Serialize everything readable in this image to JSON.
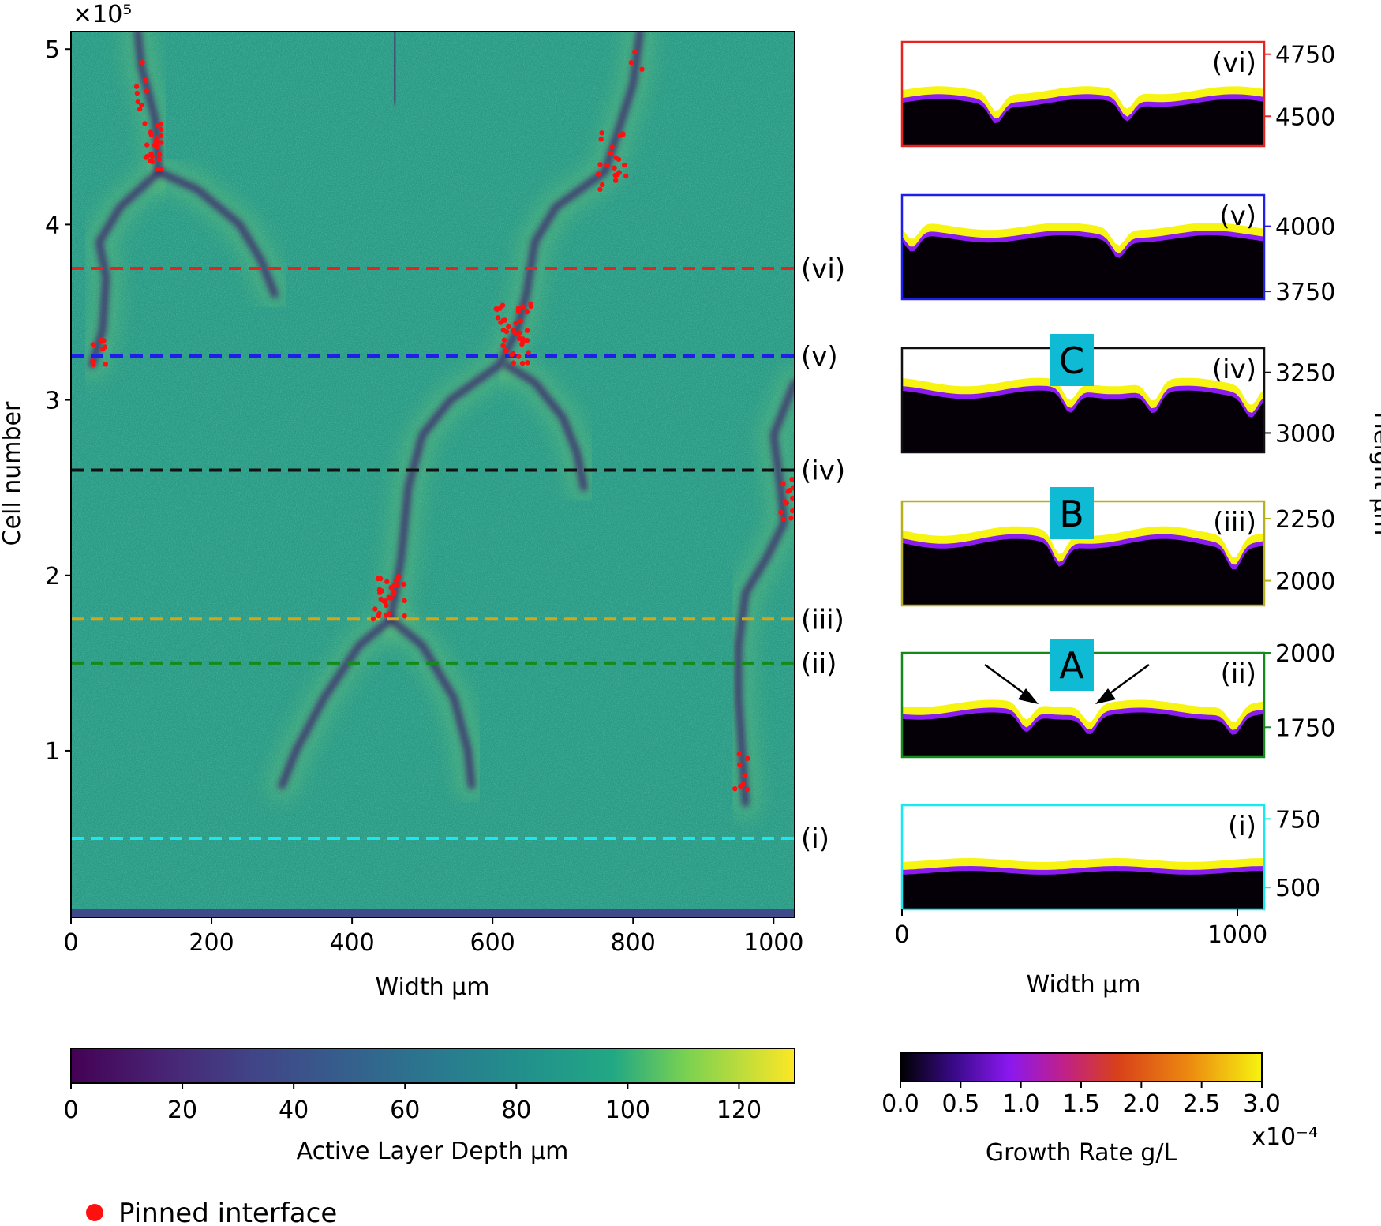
{
  "chart_data": [
    {
      "type": "heatmap",
      "name": "main-heatmap",
      "exponent_label": "×10⁵",
      "xlabel": "Width μm",
      "ylabel": "Cell number",
      "xlim": [
        0,
        1030
      ],
      "ylim": [
        0.05,
        5.1
      ],
      "xticks": [
        0,
        200,
        400,
        600,
        800,
        1000
      ],
      "yticks": [
        1,
        2,
        3,
        4,
        5
      ],
      "background_color": "#2a9a84",
      "channel_color": "#3f2a6e",
      "channels": [
        {
          "points": [
            [
              300,
              0.8
            ],
            [
              320,
              1.0
            ],
            [
              360,
              1.3
            ],
            [
              410,
              1.6
            ],
            [
              455,
              1.75
            ],
            [
              470,
              2.1
            ],
            [
              480,
              2.5
            ],
            [
              500,
              2.8
            ],
            [
              540,
              3.0
            ],
            [
              610,
              3.2
            ],
            [
              635,
              3.4
            ],
            [
              648,
              3.6
            ],
            [
              660,
              3.9
            ],
            [
              690,
              4.1
            ],
            [
              760,
              4.3
            ],
            [
              800,
              4.8
            ],
            [
              810,
              5.1
            ]
          ]
        },
        {
          "points": [
            [
              455,
              1.75
            ],
            [
              500,
              1.6
            ],
            [
              545,
              1.3
            ],
            [
              565,
              1.0
            ],
            [
              570,
              0.8
            ]
          ]
        },
        {
          "points": [
            [
              620,
              3.2
            ],
            [
              660,
              3.1
            ],
            [
              700,
              2.9
            ],
            [
              720,
              2.7
            ],
            [
              730,
              2.5
            ]
          ]
        },
        {
          "points": [
            [
              30,
              3.2
            ],
            [
              45,
              3.4
            ],
            [
              50,
              3.7
            ],
            [
              40,
              3.9
            ],
            [
              70,
              4.1
            ],
            [
              125,
              4.3
            ],
            [
              120,
              4.6
            ],
            [
              100,
              4.9
            ],
            [
              95,
              5.1
            ]
          ]
        },
        {
          "points": [
            [
              125,
              4.3
            ],
            [
              180,
              4.2
            ],
            [
              240,
              4.0
            ],
            [
              270,
              3.8
            ],
            [
              290,
              3.6
            ]
          ]
        },
        {
          "points": [
            [
              960,
              0.7
            ],
            [
              955,
              1.0
            ],
            [
              950,
              1.3
            ],
            [
              950,
              1.6
            ],
            [
              960,
              1.9
            ],
            [
              990,
              2.1
            ],
            [
              1015,
              2.3
            ],
            [
              1010,
              2.5
            ],
            [
              1000,
              2.8
            ],
            [
              1030,
              3.1
            ]
          ]
        },
        {
          "points": [
            [
              460,
              4.7
            ],
            [
              462,
              5.1
            ]
          ]
        }
      ],
      "pinned_interface_clusters": [
        {
          "x": [
            105,
            130
          ],
          "y": [
            4.3,
            4.6
          ],
          "count": 26
        },
        {
          "x": [
            85,
            110
          ],
          "y": [
            4.6,
            4.95
          ],
          "count": 8
        },
        {
          "x": [
            750,
            790
          ],
          "y": [
            4.2,
            4.55
          ],
          "count": 22
        },
        {
          "x": [
            795,
            815
          ],
          "y": [
            4.85,
            5.0
          ],
          "count": 3
        },
        {
          "x": [
            605,
            655
          ],
          "y": [
            3.2,
            3.55
          ],
          "count": 40
        },
        {
          "x": [
            30,
            50
          ],
          "y": [
            3.2,
            3.35
          ],
          "count": 10
        },
        {
          "x": [
            430,
            475
          ],
          "y": [
            1.75,
            2.0
          ],
          "count": 28
        },
        {
          "x": [
            1005,
            1030
          ],
          "y": [
            2.3,
            2.55
          ],
          "count": 14
        },
        {
          "x": [
            945,
            965
          ],
          "y": [
            0.75,
            1.0
          ],
          "count": 8
        }
      ],
      "cut_lines": [
        {
          "label": "(vi)",
          "y": 3.75,
          "color": "#e8231f"
        },
        {
          "label": "(v)",
          "y": 3.25,
          "color": "#1f1fe8"
        },
        {
          "label": "(iv)",
          "y": 2.6,
          "color": "#111111"
        },
        {
          "label": "(iii)",
          "y": 1.75,
          "color": "#d6a712"
        },
        {
          "label": "(ii)",
          "y": 1.5,
          "color": "#138a1a"
        },
        {
          "label": "(i)",
          "y": 0.5,
          "color": "#19e8f0"
        }
      ]
    },
    {
      "type": "heatmap",
      "name": "height-profiles",
      "xlabel": "Width μm",
      "ylabel": "Height μm",
      "xlim": [
        0,
        1080
      ],
      "xticks": [
        0,
        1000
      ],
      "panels": [
        {
          "label": "(vi)",
          "border_color": "#e8231f",
          "ylim": [
            4380,
            4800
          ],
          "yticks": [
            4500,
            4750
          ],
          "surface": 4605,
          "ripple": 45,
          "notches": [
            280,
            670
          ],
          "box_label": ""
        },
        {
          "label": "(v)",
          "border_color": "#1f1fe8",
          "ylim": [
            3720,
            4120
          ],
          "yticks": [
            3750,
            4000
          ],
          "surface": 4000,
          "ripple": 40,
          "notches": [
            30,
            645
          ],
          "box_label": ""
        },
        {
          "label": "(iv)",
          "border_color": "#111111",
          "ylim": [
            2920,
            3350
          ],
          "yticks": [
            3000,
            3250
          ],
          "surface": 3210,
          "ripple": 50,
          "notches": [
            500,
            750,
            1040
          ],
          "box_label": "C"
        },
        {
          "label": "(iii)",
          "border_color": "#b8b018",
          "ylim": [
            1900,
            2320
          ],
          "yticks": [
            2000,
            2250
          ],
          "surface": 2200,
          "ripple": 55,
          "notches": [
            470,
            990
          ],
          "box_label": "B"
        },
        {
          "label": "(ii)",
          "border_color": "#138a1a",
          "ylim": [
            1650,
            2000
          ],
          "yticks": [
            1750,
            2000
          ],
          "surface": 1830,
          "ripple": 35,
          "notches": [
            370,
            560,
            990
          ],
          "box_label": "A"
        },
        {
          "label": "(i)",
          "border_color": "#19e8f0",
          "ylim": [
            420,
            800
          ],
          "yticks": [
            500,
            750
          ],
          "surface": 600,
          "ripple": 20,
          "notches": [],
          "box_label": ""
        }
      ]
    }
  ],
  "legend": {
    "pinned_label": "Pinned interface",
    "pinned_color": "#ff1010"
  },
  "colorbars": {
    "depth": {
      "label": "Active Layer Depth μm",
      "min": 0,
      "max": 130,
      "ticks": [
        "0",
        "20",
        "40",
        "60",
        "80",
        "100",
        "120"
      ]
    },
    "growth": {
      "label": "Growth Rate  g/L",
      "min": 0.0,
      "max": 3.0,
      "ticks": [
        "0.0",
        "0.5",
        "1.0",
        "1.5",
        "2.0",
        "2.5",
        "3.0"
      ],
      "exponent": "x10⁻⁴"
    }
  },
  "colors": {
    "label_box": "#0fbad4",
    "surface_yellow": "#f6f410",
    "surface_purple": "#8a1cf0",
    "solid_black": "#050008"
  }
}
